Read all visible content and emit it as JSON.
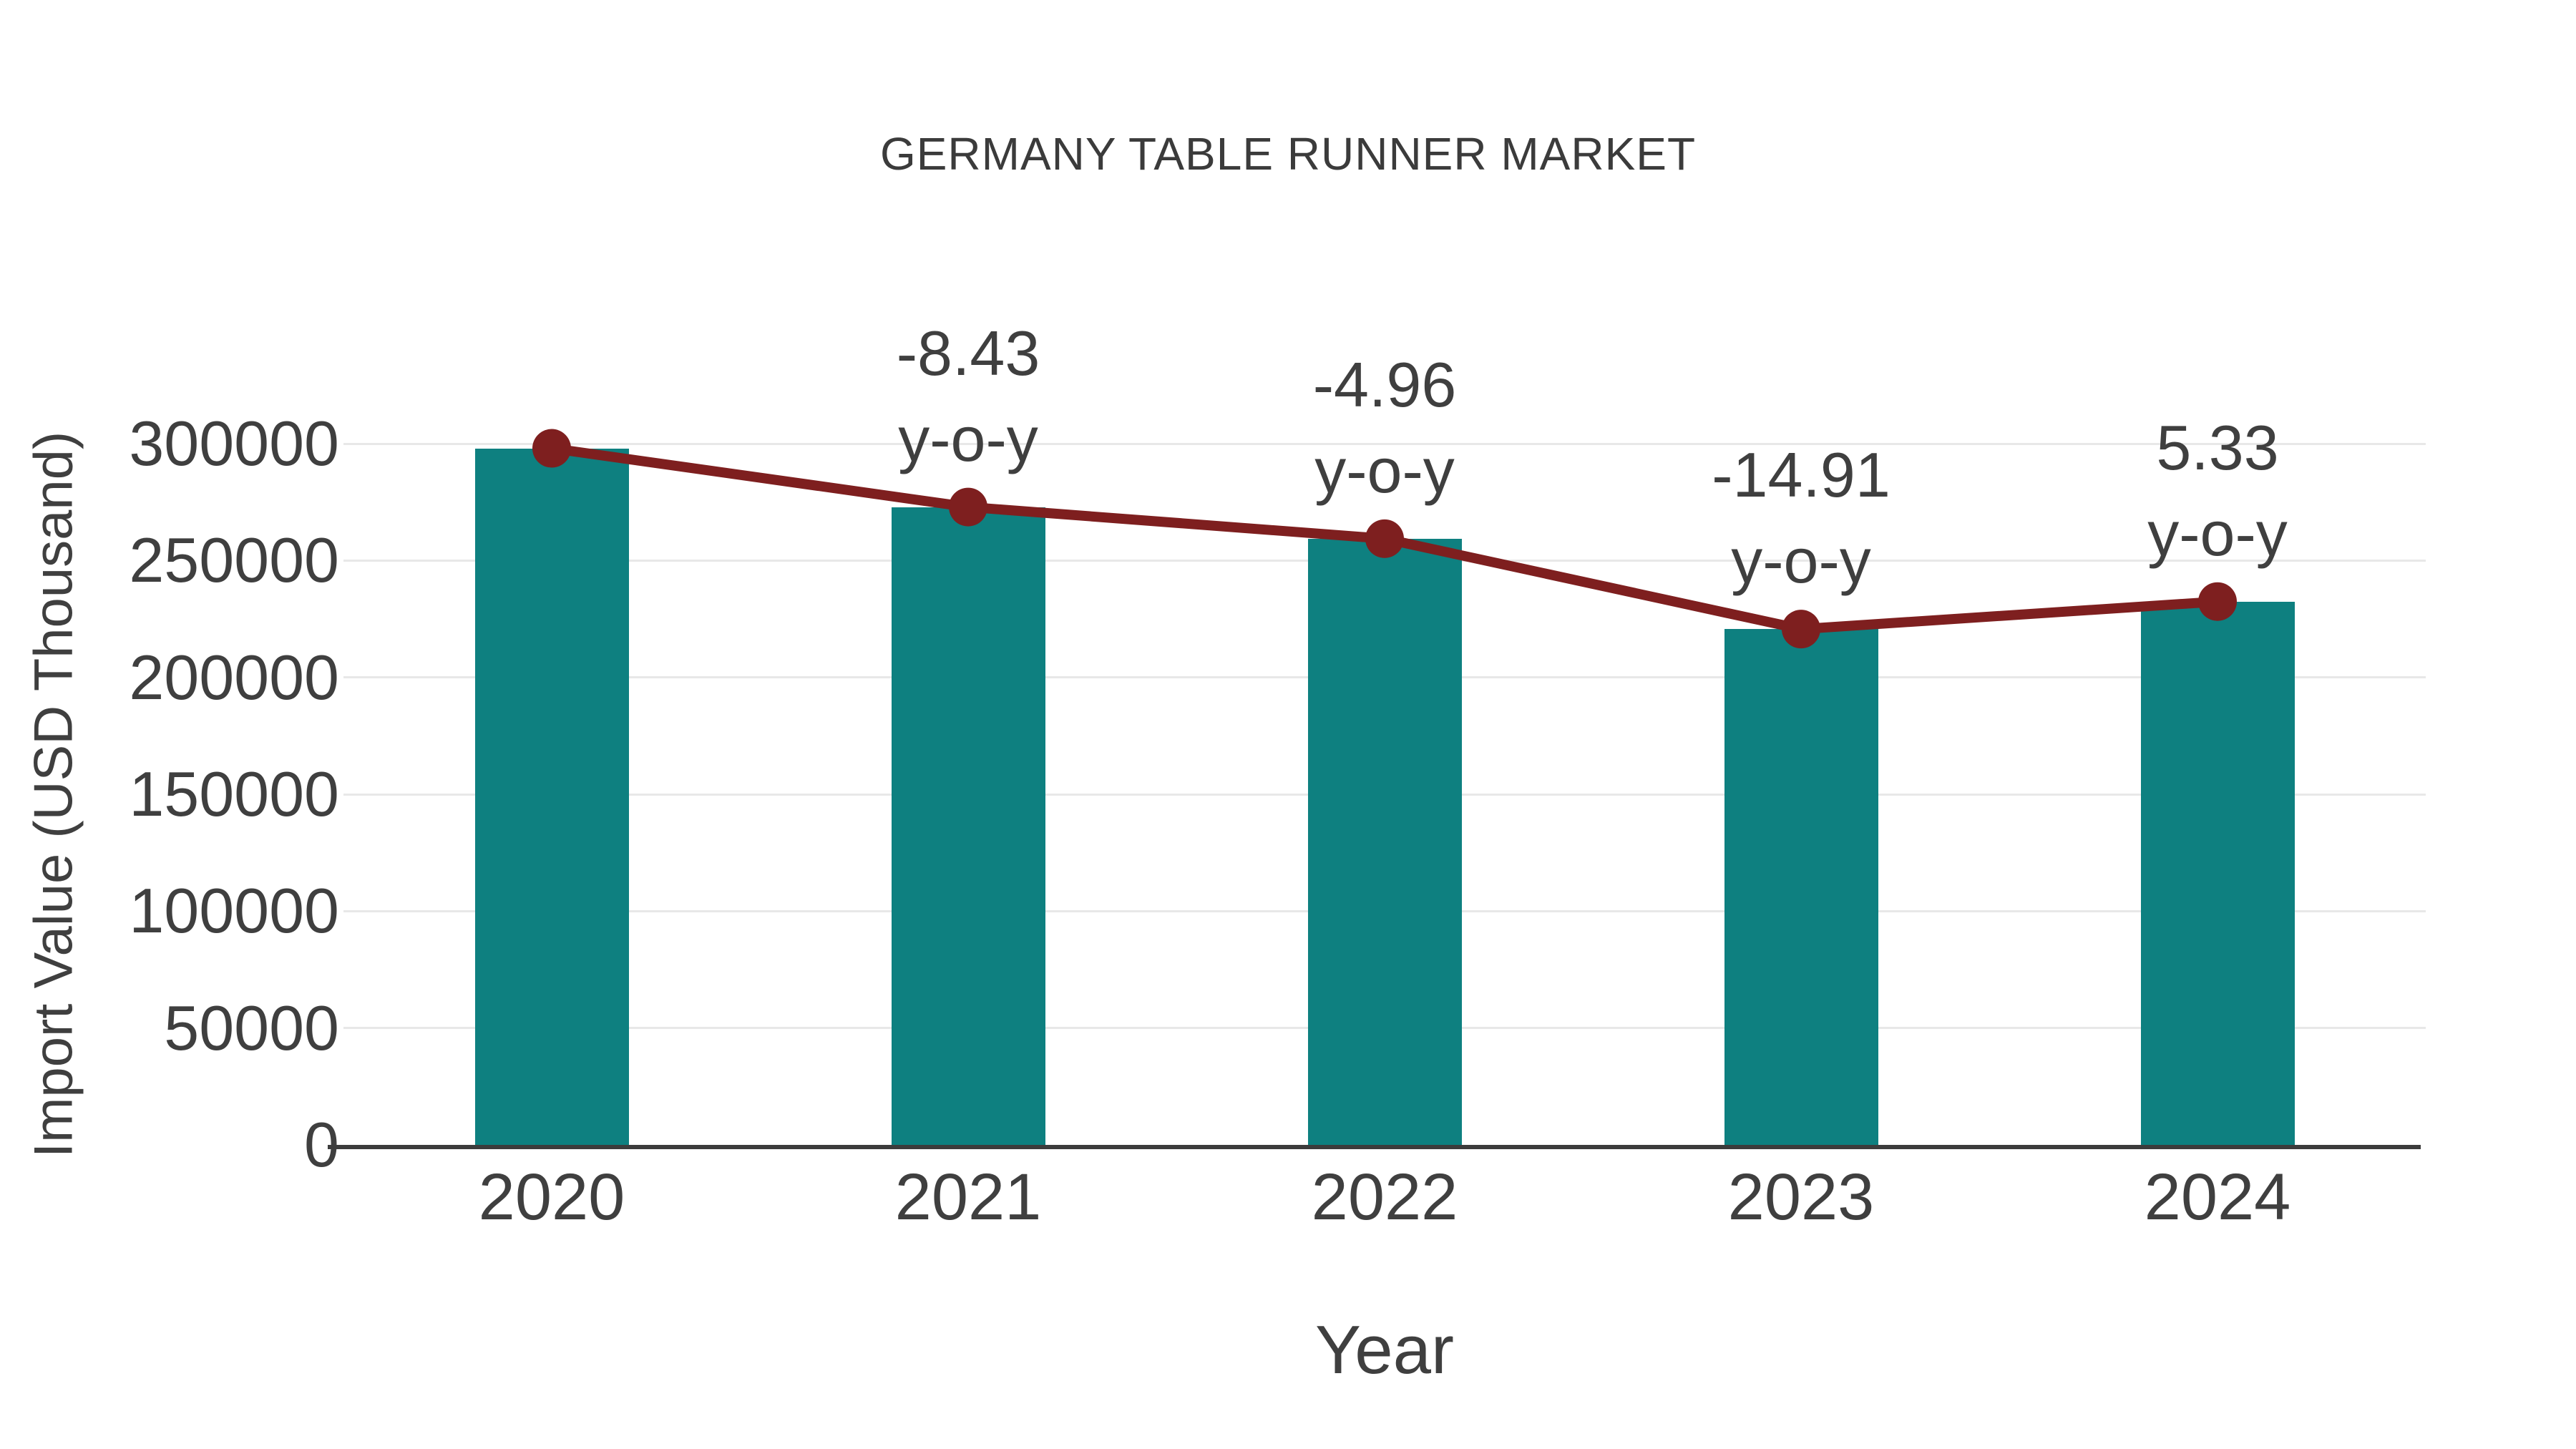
{
  "chart_data": {
    "type": "bar",
    "title": "GERMANY TABLE RUNNER MARKET",
    "xlabel": "Year",
    "ylabel": "Import Value (USD Thousand)",
    "categories": [
      "2020",
      "2021",
      "2022",
      "2023",
      "2024"
    ],
    "series": [
      {
        "name": "Import Value bars",
        "type": "bar",
        "values": [
          298000,
          272878,
          259343,
          220673,
          232435
        ]
      },
      {
        "name": "Import Value trend line",
        "type": "line",
        "values": [
          298000,
          272878,
          259343,
          220673,
          232435
        ]
      }
    ],
    "annotations": [
      {
        "category": "2021",
        "value_label": "-8.43",
        "suffix_label": "y-o-y"
      },
      {
        "category": "2022",
        "value_label": "-4.96",
        "suffix_label": "y-o-y"
      },
      {
        "category": "2023",
        "value_label": "-14.91",
        "suffix_label": "y-o-y"
      },
      {
        "category": "2024",
        "value_label": "5.33",
        "suffix_label": "y-o-y"
      }
    ],
    "ylim": [
      0,
      300000
    ],
    "yticks": [
      0,
      50000,
      100000,
      150000,
      200000,
      250000,
      300000
    ],
    "grid": "horizontal",
    "legend_visible": false,
    "colors": {
      "bar": "#0e8080",
      "line": "#7e1f1f",
      "marker": "#7e1f1f",
      "grid": "#e8e8e8",
      "axis_line": "#3c3c3c",
      "text": "#3f3f3f",
      "title": "#3b3b3b"
    }
  }
}
